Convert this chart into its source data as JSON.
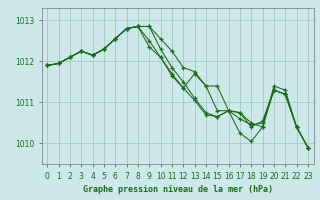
{
  "xlabel": "Graphe pression niveau de la mer (hPa)",
  "bg_color": "#cce8e8",
  "grid_color": "#aacccc",
  "line_color": "#1a6b1a",
  "xlim": [
    -0.5,
    23.5
  ],
  "ylim": [
    1009.5,
    1013.3
  ],
  "yticks": [
    1010,
    1011,
    1012,
    1013
  ],
  "xtick_labels": [
    "0",
    "1",
    "2",
    "3",
    "4",
    "5",
    "6",
    "7",
    "8",
    "9",
    "10",
    "11",
    "12",
    "13",
    "14",
    "15",
    "16",
    "17",
    "18",
    "19",
    "20",
    "21",
    "22",
    "23"
  ],
  "series": [
    [
      1011.9,
      1011.95,
      1012.1,
      1012.25,
      1012.15,
      1012.3,
      1012.55,
      1012.8,
      1012.85,
      1012.85,
      1012.55,
      1012.25,
      1011.85,
      1011.75,
      1011.4,
      1011.4,
      1010.8,
      1010.6,
      1010.45,
      1010.5,
      1011.3,
      1011.2,
      1010.4,
      1009.9
    ],
    [
      1011.9,
      1011.95,
      1012.1,
      1012.25,
      1012.15,
      1012.3,
      1012.55,
      1012.8,
      1012.85,
      1012.85,
      1012.3,
      1011.85,
      1011.5,
      1011.1,
      1010.75,
      1010.65,
      1010.8,
      1010.75,
      1010.4,
      1010.55,
      1011.3,
      1011.2,
      1010.4,
      1009.9
    ],
    [
      1011.9,
      1011.95,
      1012.1,
      1012.25,
      1012.15,
      1012.3,
      1012.55,
      1012.8,
      1012.85,
      1012.35,
      1012.1,
      1011.65,
      1011.35,
      1011.05,
      1010.7,
      1010.65,
      1010.8,
      1010.25,
      1010.05,
      1010.4,
      1011.3,
      1011.2,
      1010.4,
      1009.9
    ],
    [
      1011.9,
      1011.95,
      1012.1,
      1012.25,
      1012.15,
      1012.3,
      1012.55,
      1012.8,
      1012.85,
      1012.5,
      1012.1,
      1011.7,
      1011.35,
      1011.7,
      1011.4,
      1010.8,
      1010.8,
      1010.75,
      1010.5,
      1010.4,
      1011.4,
      1011.3,
      1010.4,
      1009.9
    ]
  ]
}
